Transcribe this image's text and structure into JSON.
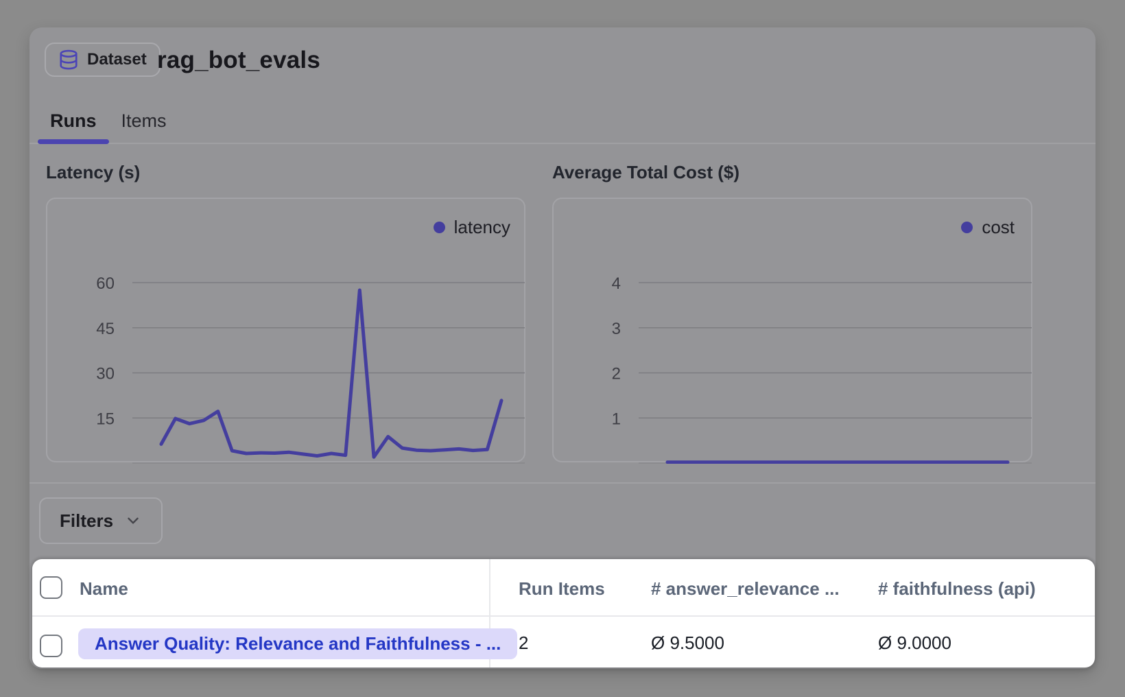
{
  "header": {
    "badge_label": "Dataset",
    "title": "rag_bot_evals"
  },
  "tabs": [
    {
      "label": "Runs",
      "active": true
    },
    {
      "label": "Items",
      "active": false
    }
  ],
  "chart_data": [
    {
      "type": "line",
      "title": "Latency (s)",
      "series": [
        {
          "name": "latency",
          "values": [
            6.3,
            14.8,
            13.1,
            14.2,
            17.2,
            4.1,
            3.2,
            3.4,
            3.3,
            3.6,
            3.0,
            2.4,
            3.2,
            2.6,
            57.5,
            2.0,
            8.8,
            5.0,
            4.3,
            4.1,
            4.4,
            4.7,
            4.2,
            4.5,
            20.8
          ]
        }
      ],
      "yticks": [
        15,
        30,
        45,
        60
      ],
      "ylim": [
        0,
        60
      ],
      "xlabel": "",
      "ylabel": "",
      "grid": true,
      "legend_position": "top-right",
      "color": "#443e9e"
    },
    {
      "type": "line",
      "title": "Average Total Cost ($)",
      "series": [
        {
          "name": "cost",
          "values": [
            0.02,
            0.02,
            0.02,
            0.02,
            0.02,
            0.02,
            0.02,
            0.02,
            0.02,
            0.02,
            0.02,
            0.02,
            0.02,
            0.02,
            0.02,
            0.02,
            0.02,
            0.02,
            0.02,
            0.02,
            0.02,
            0.02,
            0.02,
            0.02,
            0.02
          ]
        }
      ],
      "yticks": [
        1,
        2,
        3,
        4
      ],
      "ylim": [
        0,
        4
      ],
      "xlabel": "",
      "ylabel": "",
      "grid": true,
      "legend_position": "top-right",
      "color": "#443e9e"
    }
  ],
  "filters": {
    "label": "Filters"
  },
  "table": {
    "columns": [
      "Name",
      "Run Items",
      "# answer_relevance ...",
      "# faithfulness (api)"
    ],
    "rows": [
      {
        "name": "Answer Quality: Relevance and Faithfulness - ...",
        "run_items": "2",
        "answer_relevance": "Ø 9.5000",
        "faithfulness": "Ø 9.0000"
      }
    ]
  },
  "colors": {
    "accent": "#4b44b0",
    "chart_line": "#443e9e",
    "pill_background": "#dcd9fa",
    "pill_text": "#2437c5"
  }
}
